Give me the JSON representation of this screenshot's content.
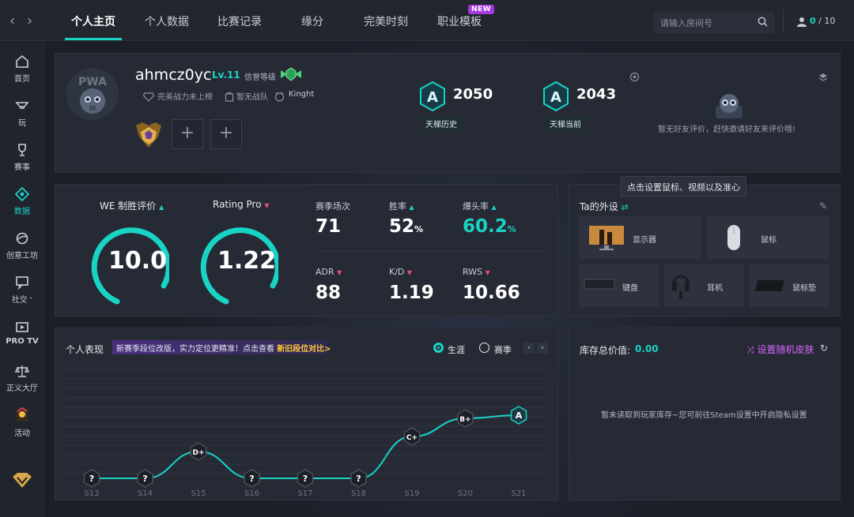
{
  "nav": {
    "tabs": [
      "个人主页",
      "个人数据",
      "比赛记录",
      "缘分",
      "完美时刻",
      "职业模板"
    ],
    "new_badge": "NEW",
    "search_placeholder": "请输入房间号",
    "counter_value": "0",
    "counter_total": "/ 10"
  },
  "sidebar": {
    "items": [
      {
        "label": "首页",
        "icon": "home-icon"
      },
      {
        "label": "玩",
        "icon": "play-icon"
      },
      {
        "label": "赛事",
        "icon": "trophy-icon"
      },
      {
        "label": "数据",
        "icon": "data-icon"
      },
      {
        "label": "创意工坊",
        "icon": "workshop-icon"
      },
      {
        "label": "社交",
        "icon": "social-icon"
      },
      {
        "label": "PRO TV",
        "icon": "tv-icon"
      },
      {
        "label": "正义大厅",
        "icon": "justice-icon"
      },
      {
        "label": "活动",
        "icon": "event-icon"
      }
    ],
    "active": "数据"
  },
  "profile": {
    "username": "ahmcz0yc",
    "level": "Lv.11",
    "credit_label": "信誉等级",
    "power_rank": "完美战力未上榜",
    "team": "暂无战队",
    "knight": "Kinght",
    "ladder_history_value": "2050",
    "ladder_history_label": "天梯历史",
    "ladder_current_value": "2043",
    "ladder_current_label": "天梯当前",
    "rank_letter": "A",
    "friend_eval": "暂无好友评价，赶快邀请好友来评价哦!"
  },
  "ratings": {
    "we_label": "WE 制胜评价",
    "we_value": "10.0",
    "rating_label": "Rating Pro",
    "rating_value": "1.22"
  },
  "stats": {
    "matches_label": "赛季场次",
    "matches_value": "71",
    "winrate_label": "胜率",
    "winrate_value": "52",
    "headshot_label": "爆头率",
    "headshot_value": "60.2",
    "adr_label": "ADR",
    "adr_value": "88",
    "kd_label": "K/D",
    "kd_value": "1.19",
    "rws_label": "RWS",
    "rws_value": "10.66",
    "pct": "%"
  },
  "gear": {
    "tooltip": "点击设置鼠标、视频以及准心",
    "title": "Ta的外设",
    "items": [
      "显示器",
      "鼠标",
      "键盘",
      "耳机",
      "鼠标垫"
    ]
  },
  "performance": {
    "title": "个人表现",
    "banner_text": "新赛季段位改版，实力定位更精准！点击查看",
    "banner_link": "新旧段位对比>",
    "radio_career": "生涯",
    "radio_season": "赛季",
    "pager_prev": "‹",
    "pager_next": "›"
  },
  "chart_data": {
    "type": "line",
    "categories": [
      "S13",
      "S14",
      "S15",
      "S16",
      "S17",
      "S18",
      "S19",
      "S20",
      "S21"
    ],
    "values": [
      "?",
      "?",
      "D+",
      "?",
      "?",
      "?",
      "C+",
      "B+",
      "A"
    ],
    "color": "#19d3c5"
  },
  "inventory": {
    "title": "库存总价值:",
    "value": "0.00",
    "skin_link": "设置随机皮肤",
    "empty_msg": "暂未读取到玩家库存~您可前往Steam设置中开启隐私设置"
  },
  "colors": {
    "accent": "#19d3c5",
    "down": "#e6497b",
    "highlight": "#ffc83a",
    "purple": "#d766ff"
  }
}
